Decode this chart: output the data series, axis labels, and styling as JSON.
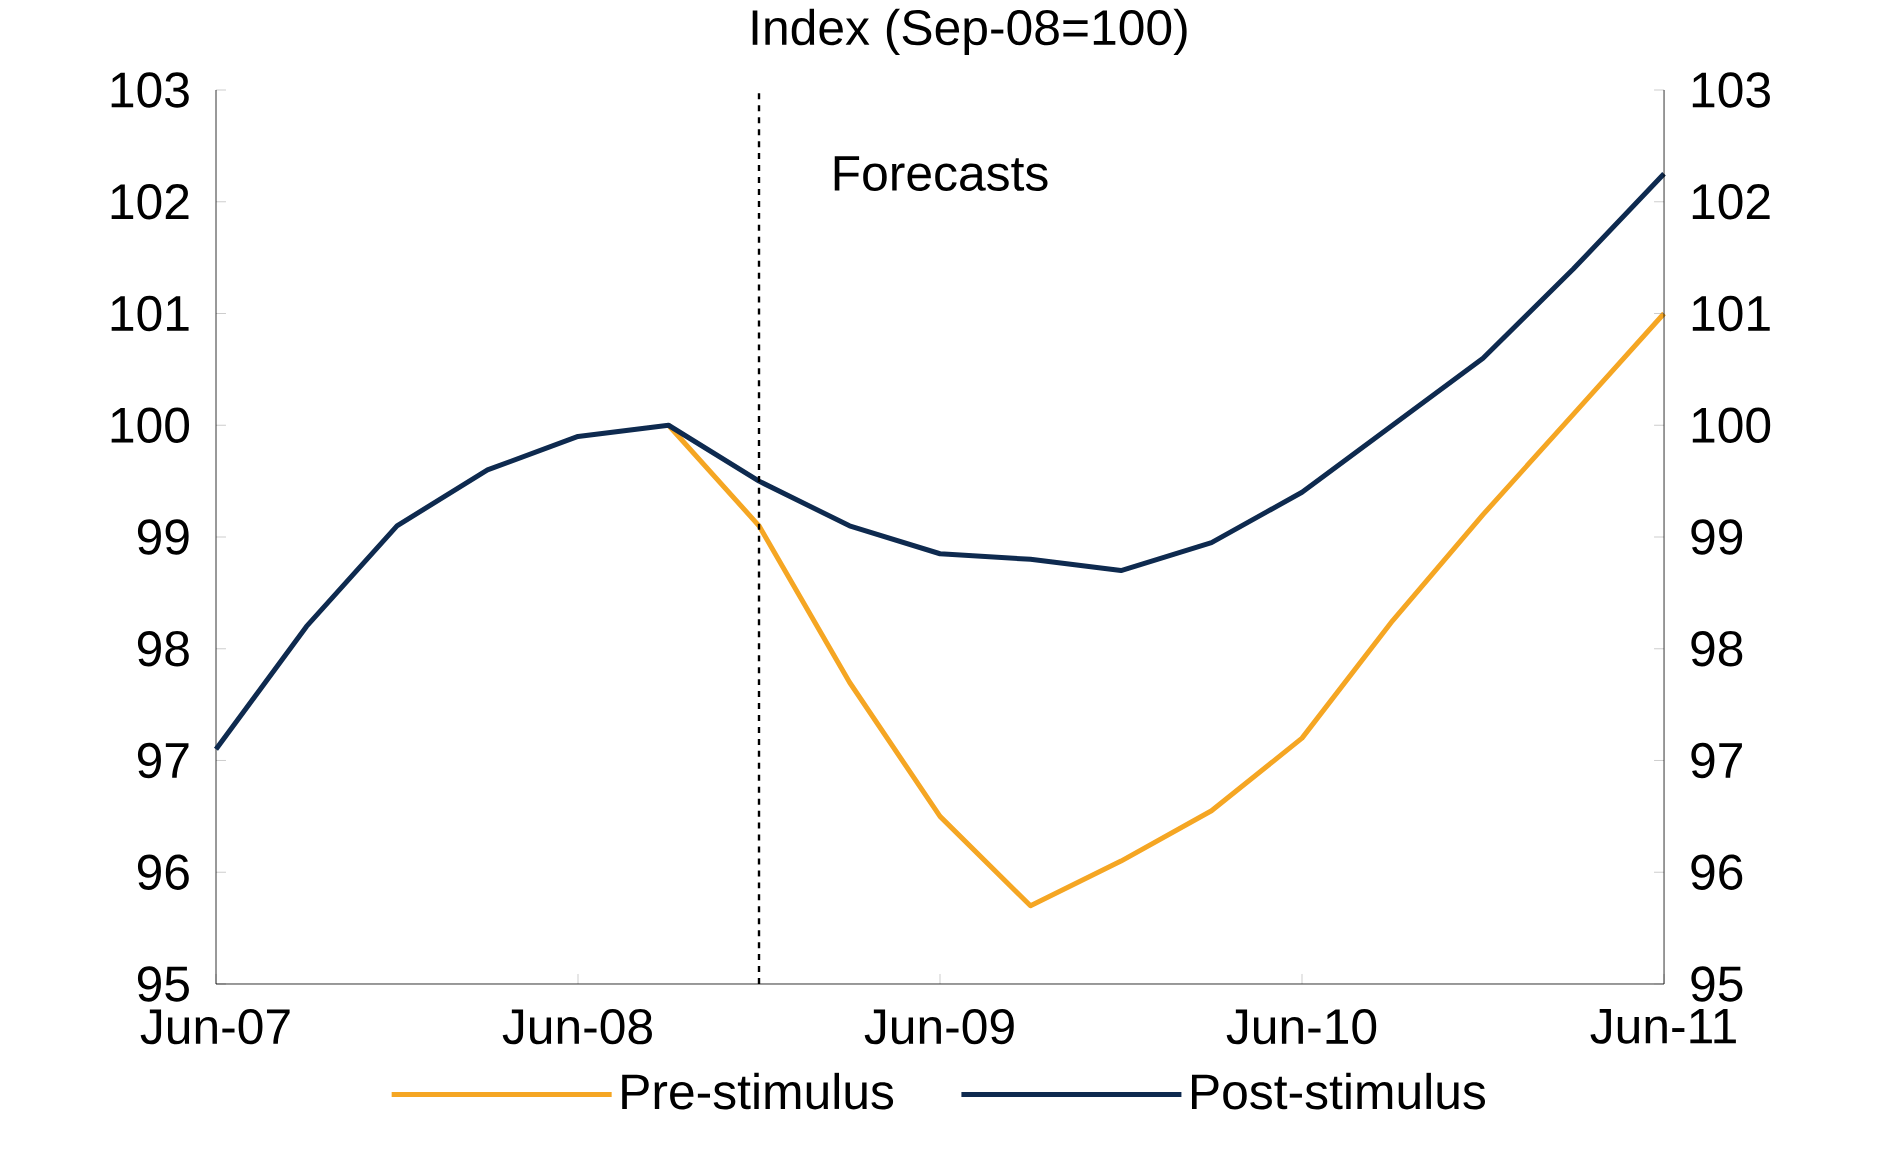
{
  "chart_data": {
    "type": "line",
    "title": "Index (Sep-08=100)",
    "x": [
      "2007-06",
      "2007-09",
      "2007-12",
      "2008-03",
      "2008-06",
      "2008-09",
      "2008-12",
      "2009-03",
      "2009-06",
      "2009-09",
      "2009-12",
      "2010-03",
      "2010-06",
      "2010-09",
      "2010-12",
      "2011-03",
      "2011-06"
    ],
    "series": [
      {
        "name": "Pre-stimulus",
        "color": "#f5a623",
        "values": [
          null,
          null,
          null,
          null,
          null,
          100,
          99.1,
          97.7,
          96.5,
          95.7,
          96.1,
          96.55,
          97.2,
          98.25,
          99.2,
          100.1,
          101.0
        ]
      },
      {
        "name": "Post-stimulus",
        "color": "#0e2a4f",
        "values": [
          97.1,
          98.2,
          99.1,
          99.6,
          99.9,
          100,
          99.5,
          99.1,
          98.85,
          98.8,
          98.7,
          98.95,
          99.4,
          100,
          100.6,
          101.4,
          102.25
        ]
      }
    ],
    "xlim": [
      "2007-06",
      "2011-06"
    ],
    "xticks": [
      {
        "value": "2007-06",
        "label": "Jun-07"
      },
      {
        "value": "2008-06",
        "label": "Jun-08"
      },
      {
        "value": "2009-06",
        "label": "Jun-09"
      },
      {
        "value": "2010-06",
        "label": "Jun-10"
      },
      {
        "value": "2011-06",
        "label": "Jun-11"
      }
    ],
    "ylim": [
      95,
      103
    ],
    "yticks": [
      95,
      96,
      97,
      98,
      99,
      100,
      101,
      102,
      103
    ],
    "y2lim": [
      95,
      103
    ],
    "y2ticks": [
      95,
      96,
      97,
      98,
      99,
      100,
      101,
      102,
      103
    ],
    "ref_lines": [
      {
        "axis": "x",
        "value": "2008-12",
        "line_style": "dashed",
        "color": "#000000"
      }
    ],
    "annotations": [
      "Forecasts"
    ],
    "legend": "bottom",
    "grid": false,
    "marker": "none",
    "line_style": "solid"
  }
}
